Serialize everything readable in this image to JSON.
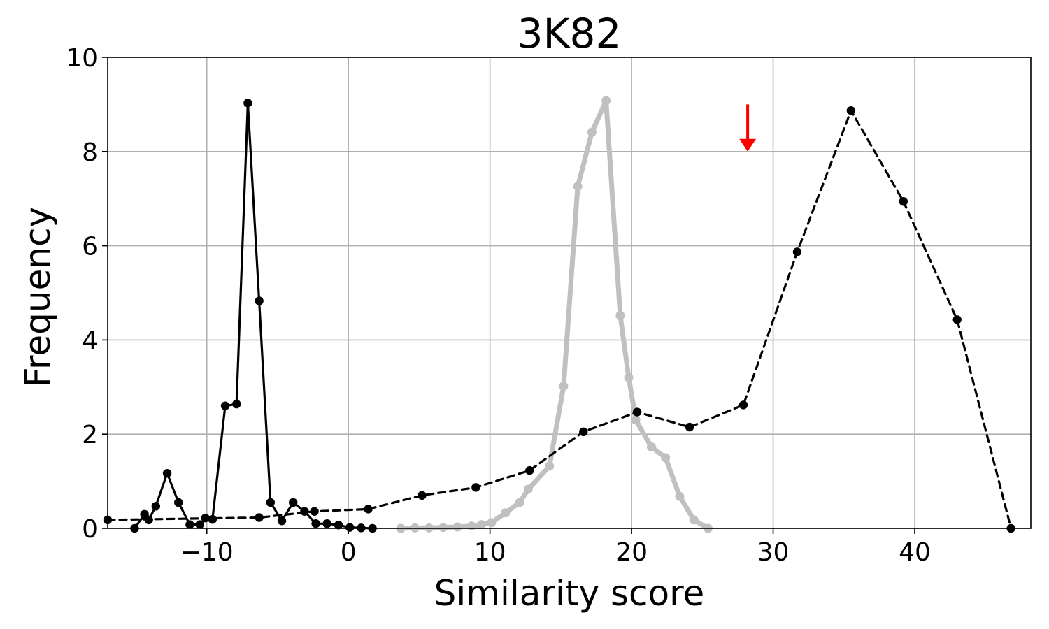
{
  "chart_data": {
    "type": "line",
    "title": "3K82",
    "xlabel": "Similarity score",
    "ylabel": "Frequency",
    "xlim": [
      -17,
      48.2
    ],
    "ylim": [
      0,
      10
    ],
    "xticks": [
      -10,
      0,
      10,
      20,
      30,
      40
    ],
    "xtick_labels": [
      "−10",
      "0",
      "10",
      "20",
      "30",
      "40"
    ],
    "yticks": [
      0,
      2,
      4,
      6,
      8,
      10
    ],
    "ytick_labels": [
      "0",
      "2",
      "4",
      "6",
      "8",
      "10"
    ],
    "grid": true,
    "annotation": {
      "type": "arrow",
      "color": "#ff0000",
      "x": 28.2,
      "y_from": 9.0,
      "y_to": 8.0
    },
    "series": [
      {
        "style": "solid",
        "color": "#000000",
        "x": [
          -15.1,
          -14.4,
          -14.1,
          -13.6,
          -12.8,
          -12.0,
          -11.2,
          -10.5,
          -10.1,
          -9.6,
          -8.7,
          -7.9,
          -7.1,
          -6.3,
          -5.5,
          -4.7,
          -3.9,
          -3.1,
          -2.3,
          -1.5,
          -0.7,
          0.1,
          0.9,
          1.7
        ],
        "y": [
          0.0,
          0.3,
          0.18,
          0.47,
          1.17,
          0.55,
          0.08,
          0.08,
          0.22,
          0.19,
          2.6,
          2.64,
          9.03,
          4.83,
          0.55,
          0.16,
          0.55,
          0.36,
          0.1,
          0.1,
          0.07,
          0.02,
          0.01,
          0.0
        ]
      },
      {
        "style": "dashed",
        "color": "#000000",
        "x": [
          -17,
          -6.3,
          -2.4,
          1.4,
          5.2,
          9.0,
          12.8,
          16.6,
          20.4,
          24.1,
          27.9,
          31.7,
          35.5,
          39.2,
          43.0,
          46.8
        ],
        "y": [
          0.18,
          0.23,
          0.36,
          0.41,
          0.7,
          0.87,
          1.23,
          2.05,
          2.47,
          2.15,
          2.62,
          5.87,
          8.87,
          6.94,
          4.43,
          0.0
        ]
      },
      {
        "style": "thick",
        "color": "#c0c0c0",
        "x": [
          3.7,
          4.7,
          5.7,
          6.7,
          7.7,
          8.7,
          9.4,
          10.1,
          11.1,
          12.1,
          12.7,
          14.2,
          15.2,
          16.2,
          17.2,
          18.2,
          19.2,
          19.8,
          20.3,
          21.4,
          22.4,
          23.4,
          24.4,
          25.4
        ],
        "y": [
          0.0,
          0.01,
          0.01,
          0.02,
          0.03,
          0.05,
          0.08,
          0.12,
          0.33,
          0.55,
          0.83,
          1.32,
          3.02,
          7.26,
          8.41,
          9.08,
          4.52,
          3.2,
          2.3,
          1.73,
          1.5,
          0.68,
          0.18,
          0.0
        ]
      }
    ]
  }
}
